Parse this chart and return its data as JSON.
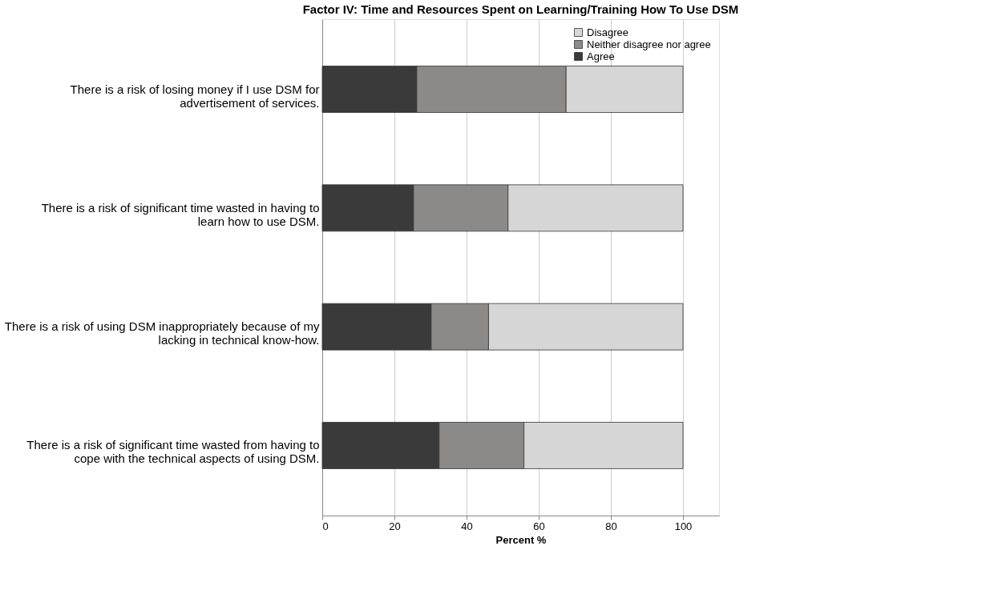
{
  "chart_data": {
    "type": "bar",
    "orientation": "horizontal",
    "stacked": true,
    "title": "Factor IV: Time and Resources Spent on Learning/Training How To Use DSM",
    "xlabel": "Percent %",
    "categories": [
      "There is a risk of losing money if I use DSM for advertisement of services.",
      "There is a risk of significant time wasted in having to learn how to use DSM.",
      "There is a risk of using DSM inappropriately because of my lacking in technical know-how.",
      "There is a risk of significant time wasted from having to cope with the technical aspects of using DSM."
    ],
    "series": [
      {
        "name": "Agree",
        "color": "#3a3a3a",
        "values": [
          26.2,
          25.3,
          30.2,
          32.4
        ]
      },
      {
        "name": "Neither disagree nor agree",
        "color": "#8c8989",
        "values": [
          41.4,
          26.2,
          15.9,
          23.5
        ]
      },
      {
        "name": "Disagree",
        "color": "#d6d6d6",
        "values": [
          32.4,
          48.5,
          53.9,
          44.1
        ]
      }
    ],
    "xlim": [
      0,
      110
    ],
    "xticks": [
      0,
      20,
      40,
      60,
      80,
      100
    ],
    "grid": "x",
    "legend": "top right"
  }
}
